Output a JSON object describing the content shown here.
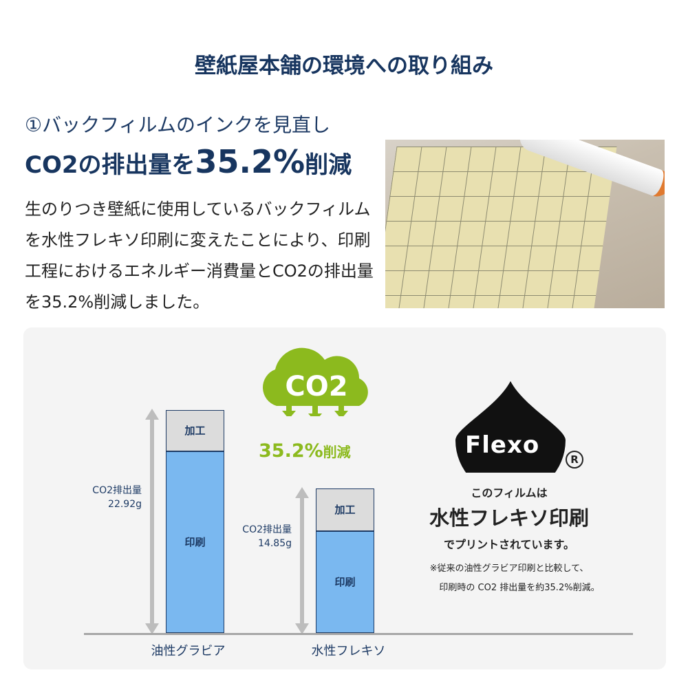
{
  "title": "壁紙屋本舗の環境への取り組み",
  "subheading": "①バックフィルムのインクを見直し",
  "headline": {
    "prefix": "CO2の排出量を",
    "value": "35.2%",
    "suffix": "削減"
  },
  "body": "生のりつき壁紙に使用しているバックフィルムを水性フレキソ印刷に変えたことにより、印刷工程におけるエネルギー消費量とCO2の排出量を35.2%削減しました。",
  "cloud_label": "CO2",
  "reduction": {
    "value": "35.2%",
    "suffix": "削減"
  },
  "flexo": {
    "logo": "Flexo",
    "registered": "R",
    "line1": "このフィルムは",
    "line2": "水性フレキソ印刷",
    "line3": "でプリントされています。",
    "note1": "※従来の油性グラビア印刷と比較して、",
    "note2": "印刷時の CO2 排出量を約35.2%削減。"
  },
  "colors": {
    "navy": "#17355f",
    "green": "#8cba1e",
    "print": "#7ab8f0",
    "kakou": "#dcdcdc"
  },
  "chart_data": {
    "type": "bar",
    "stacked": true,
    "categories": [
      "油性グラビア",
      "水性フレキソ"
    ],
    "series": [
      {
        "name": "印刷",
        "values": [
          18.7,
          10.5
        ]
      },
      {
        "name": "加工",
        "values": [
          4.2,
          4.35
        ]
      }
    ],
    "totals_labels": [
      {
        "label": "CO2排出量",
        "value": "22.92g"
      },
      {
        "label": "CO2排出量",
        "value": "14.85g"
      }
    ],
    "totals": [
      22.92,
      14.85
    ],
    "ylim": [
      0,
      22.92
    ]
  }
}
